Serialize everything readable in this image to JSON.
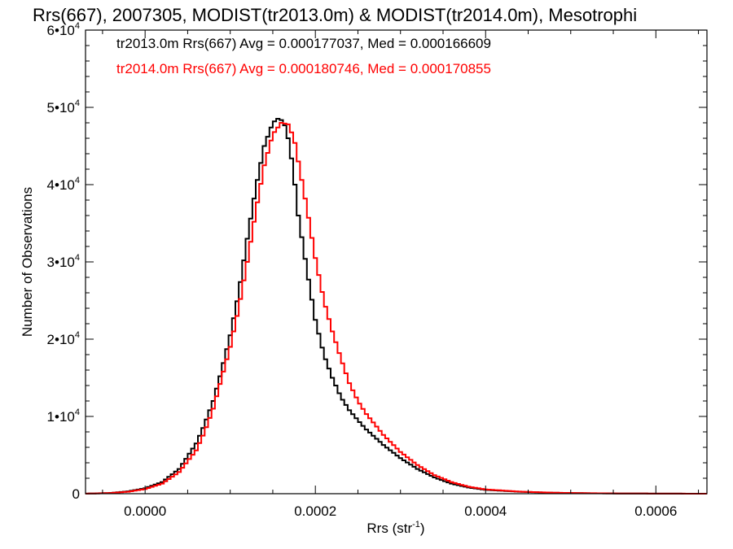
{
  "chart_data": {
    "type": "histogram",
    "title": "Rrs(667), 2007305, MODIST(tr2013.0m) & MODIST(tr2014.0m), Mesotrophi",
    "xlabel": "Rrs (str",
    "xlabel_sup": "-1",
    "xlabel_close": ")",
    "ylabel": "Number of Observations",
    "xlim": [
      -7e-05,
      0.00066
    ],
    "ylim": [
      0,
      60000
    ],
    "x_ticks": [
      {
        "value": 0.0,
        "label": "0.0000"
      },
      {
        "value": 0.0002,
        "label": "0.0002"
      },
      {
        "value": 0.0004,
        "label": "0.0004"
      },
      {
        "value": 0.0006,
        "label": "0.0006"
      }
    ],
    "y_ticks": [
      {
        "value": 0,
        "mant": "0",
        "exp": ""
      },
      {
        "value": 10000,
        "mant": "1•10",
        "exp": "4"
      },
      {
        "value": 20000,
        "mant": "2•10",
        "exp": "4"
      },
      {
        "value": 30000,
        "mant": "3•10",
        "exp": "4"
      },
      {
        "value": 40000,
        "mant": "4•10",
        "exp": "4"
      },
      {
        "value": 50000,
        "mant": "5•10",
        "exp": "4"
      },
      {
        "value": 60000,
        "mant": "6•10",
        "exp": "4"
      }
    ],
    "grid": false,
    "legend_position": "top-left",
    "series": [
      {
        "name": "tr2013.0m Rrs(667) Avg = 0.000177037, Med = 0.000166609",
        "color": "#000000",
        "x": [
          -7e-05,
          -4e-05,
          -2e-05,
          0.0,
          2e-05,
          4e-05,
          6e-05,
          7e-05,
          8e-05,
          9e-05,
          0.0001,
          0.00011,
          0.00012,
          0.00013,
          0.00014,
          0.00015,
          0.000158,
          0.000165,
          0.00017,
          0.000175,
          0.00018,
          0.00019,
          0.0002,
          0.00021,
          0.00022,
          0.00023,
          0.00024,
          0.00025,
          0.00026,
          0.00028,
          0.0003,
          0.00032,
          0.00034,
          0.00036,
          0.00038,
          0.0004,
          0.00044,
          0.00048,
          0.00052,
          0.00056,
          0.0006,
          0.00066
        ],
        "y": [
          0,
          100,
          300,
          700,
          1500,
          3200,
          6500,
          9000,
          12000,
          16000,
          20500,
          26000,
          33000,
          39500,
          45000,
          48000,
          48700,
          47500,
          45000,
          41000,
          36000,
          29000,
          22500,
          18000,
          15000,
          12500,
          10800,
          9500,
          8300,
          6300,
          4600,
          3200,
          2100,
          1300,
          800,
          500,
          250,
          120,
          60,
          30,
          10,
          0
        ]
      },
      {
        "name": "tr2014.0m Rrs(667) Avg = 0.000180746, Med = 0.000170855",
        "color": "#ff0000",
        "x": [
          -7e-05,
          -4e-05,
          -2e-05,
          0.0,
          2e-05,
          4e-05,
          6e-05,
          7e-05,
          8e-05,
          9e-05,
          0.0001,
          0.00011,
          0.00012,
          0.00013,
          0.00014,
          0.00015,
          0.00016,
          0.000168,
          0.000175,
          0.00018,
          0.00019,
          0.0002,
          0.00021,
          0.00022,
          0.00023,
          0.00024,
          0.00025,
          0.00026,
          0.00028,
          0.0003,
          0.00032,
          0.00034,
          0.00036,
          0.00038,
          0.0004,
          0.00044,
          0.00048,
          0.00052,
          0.00056,
          0.0006,
          0.00066
        ],
        "y": [
          0,
          90,
          250,
          600,
          1300,
          2800,
          5600,
          8000,
          11000,
          15000,
          19000,
          24000,
          30000,
          36500,
          42500,
          46500,
          48000,
          47800,
          46000,
          43000,
          37000,
          30500,
          25000,
          21000,
          17500,
          14300,
          12000,
          10300,
          7600,
          5400,
          3700,
          2400,
          1500,
          900,
          550,
          270,
          130,
          65,
          30,
          12,
          0
        ]
      }
    ]
  }
}
